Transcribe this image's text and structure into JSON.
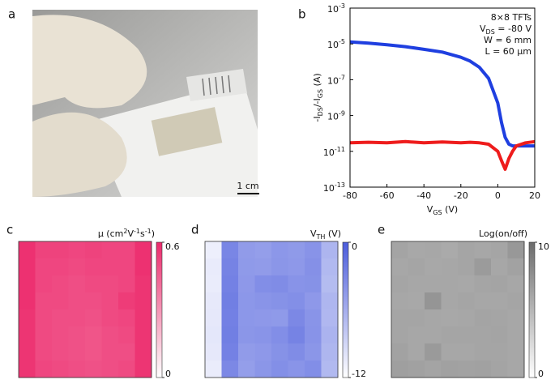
{
  "chart_data": [
    {
      "type": "image",
      "label": "a",
      "scale_bar": "1 cm"
    },
    {
      "type": "line",
      "label": "b",
      "log_y": true,
      "xlabel": [
        {
          "text": "V"
        },
        {
          "text": "GS",
          "shift": "sub"
        },
        {
          "text": " (V)"
        }
      ],
      "ylabel": [
        {
          "text": "-I"
        },
        {
          "text": "DS",
          "shift": "sub"
        },
        {
          "text": "/-I"
        },
        {
          "text": "GS",
          "shift": "sub"
        },
        {
          "text": " (A)"
        }
      ],
      "annotations": [
        [
          {
            "text": "8×8 TFTs"
          }
        ],
        [
          {
            "text": "V"
          },
          {
            "text": "DS",
            "shift": "sub"
          },
          {
            "text": " = -80 V"
          }
        ],
        [
          {
            "text": "W = 6 mm"
          }
        ],
        [
          {
            "text": "L = 60 μm"
          }
        ]
      ],
      "x": [
        -80,
        -70,
        -60,
        -50,
        -40,
        -30,
        -20,
        -15,
        -10,
        -5,
        0,
        2,
        4,
        6,
        8,
        10,
        15,
        20
      ],
      "series": [
        {
          "color": "#1f3fe0",
          "values": [
            1.3e-05,
            1.1e-05,
            9e-06,
            7e-06,
            5e-06,
            3.5e-06,
            1.8e-06,
            1.1e-06,
            5e-07,
            1.2e-07,
            5e-09,
            4e-10,
            6e-11,
            2.5e-11,
            2e-11,
            2e-11,
            2e-11,
            2e-11
          ]
        },
        {
          "color": "#ee1c1c",
          "values": [
            3e-11,
            3.2e-11,
            3e-11,
            3.5e-11,
            3e-11,
            3.3e-11,
            3e-11,
            3.2e-11,
            3e-11,
            2.5e-11,
            1e-11,
            3e-12,
            1e-12,
            4e-12,
            1e-11,
            2e-11,
            3e-11,
            3.5e-11
          ]
        }
      ],
      "xlim": [
        -80,
        20
      ],
      "xticks": [
        -80,
        -60,
        -40,
        -20,
        0,
        20
      ],
      "ylim": [
        1e-13,
        0.001
      ],
      "yticks": [
        {
          "value": 1e-13,
          "label": "10",
          "exponent": "-13"
        },
        {
          "value": 1e-11,
          "label": "10",
          "exponent": "-11"
        },
        {
          "value": 1e-09,
          "label": "10",
          "exponent": "-9"
        },
        {
          "value": 1e-07,
          "label": "10",
          "exponent": "-7"
        },
        {
          "value": 1e-05,
          "label": "10",
          "exponent": "-5"
        },
        {
          "value": 0.001,
          "label": "10",
          "exponent": "-3"
        }
      ]
    },
    {
      "type": "heatmap",
      "label": "c",
      "title": [
        {
          "text": "μ (cm"
        },
        {
          "text": "2",
          "shift": "sup"
        },
        {
          "text": "V"
        },
        {
          "text": "-1",
          "shift": "sup"
        },
        {
          "text": "s"
        },
        {
          "text": "-1",
          "shift": "sup"
        },
        {
          "text": ")"
        }
      ],
      "clim": [
        0,
        0.6
      ],
      "cticks": [
        0,
        0.6
      ],
      "colors": [
        "#ffffff",
        "#ec2a6c"
      ],
      "values": [
        [
          0.58,
          0.53,
          0.53,
          0.52,
          0.53,
          0.52,
          0.52,
          0.58
        ],
        [
          0.58,
          0.52,
          0.52,
          0.51,
          0.52,
          0.52,
          0.52,
          0.58
        ],
        [
          0.58,
          0.52,
          0.51,
          0.5,
          0.51,
          0.51,
          0.52,
          0.57
        ],
        [
          0.58,
          0.51,
          0.51,
          0.5,
          0.5,
          0.51,
          0.55,
          0.57
        ],
        [
          0.57,
          0.51,
          0.5,
          0.5,
          0.49,
          0.51,
          0.52,
          0.57
        ],
        [
          0.57,
          0.51,
          0.5,
          0.49,
          0.48,
          0.5,
          0.51,
          0.57
        ],
        [
          0.57,
          0.51,
          0.5,
          0.49,
          0.48,
          0.5,
          0.5,
          0.57
        ],
        [
          0.57,
          0.52,
          0.51,
          0.5,
          0.49,
          0.5,
          0.51,
          0.57
        ]
      ]
    },
    {
      "type": "heatmap",
      "label": "d",
      "title": [
        {
          "text": "V"
        },
        {
          "text": "TH",
          "shift": "sub"
        },
        {
          "text": " (V)"
        }
      ],
      "clim": [
        -12,
        0
      ],
      "cticks": [
        -12,
        0
      ],
      "colors": [
        "#ffffff",
        "#4c5ddc"
      ],
      "values": [
        [
          -10.8,
          -3.0,
          -4.6,
          -4.8,
          -4.3,
          -4.5,
          -4.0,
          -6.5
        ],
        [
          -10.5,
          -2.8,
          -4.5,
          -4.6,
          -4.2,
          -4.4,
          -3.8,
          -6.8
        ],
        [
          -10.6,
          -2.7,
          -4.4,
          -3.6,
          -3.5,
          -4.0,
          -3.9,
          -7.0
        ],
        [
          -10.4,
          -2.5,
          -4.3,
          -4.1,
          -3.9,
          -3.7,
          -4.4,
          -6.6
        ],
        [
          -10.3,
          -2.6,
          -4.3,
          -4.4,
          -4.5,
          -3.2,
          -4.1,
          -6.7
        ],
        [
          -10.2,
          -2.5,
          -4.2,
          -4.1,
          -3.6,
          -2.8,
          -4.0,
          -6.4
        ],
        [
          -10.3,
          -2.7,
          -4.6,
          -4.4,
          -3.9,
          -3.5,
          -4.2,
          -6.6
        ],
        [
          -10.6,
          -3.2,
          -4.8,
          -4.2,
          -3.7,
          -4.1,
          -3.6,
          -6.8
        ]
      ]
    },
    {
      "type": "heatmap",
      "label": "e",
      "title": [
        {
          "text": "Log(on/off)"
        }
      ],
      "clim": [
        0,
        10
      ],
      "cticks": [
        0,
        10
      ],
      "colors": [
        "#ffffff",
        "#6c6c6c"
      ],
      "values": [
        [
          6.2,
          5.9,
          6.0,
          5.8,
          6.1,
          6.0,
          6.1,
          7.0
        ],
        [
          6.0,
          6.1,
          5.9,
          6.0,
          6.1,
          6.8,
          6.0,
          6.3
        ],
        [
          6.1,
          6.0,
          6.0,
          6.0,
          5.9,
          6.1,
          6.2,
          6.0
        ],
        [
          6.0,
          5.9,
          7.2,
          6.0,
          6.1,
          6.0,
          6.0,
          6.1
        ],
        [
          6.1,
          6.1,
          6.0,
          5.9,
          6.0,
          6.2,
          6.1,
          6.0
        ],
        [
          6.1,
          6.0,
          6.0,
          6.1,
          6.1,
          6.1,
          6.2,
          6.0
        ],
        [
          6.3,
          6.0,
          6.9,
          6.0,
          6.0,
          6.1,
          6.1,
          6.0
        ],
        [
          6.5,
          6.4,
          6.2,
          6.4,
          6.3,
          6.4,
          6.2,
          6.0
        ]
      ]
    }
  ]
}
